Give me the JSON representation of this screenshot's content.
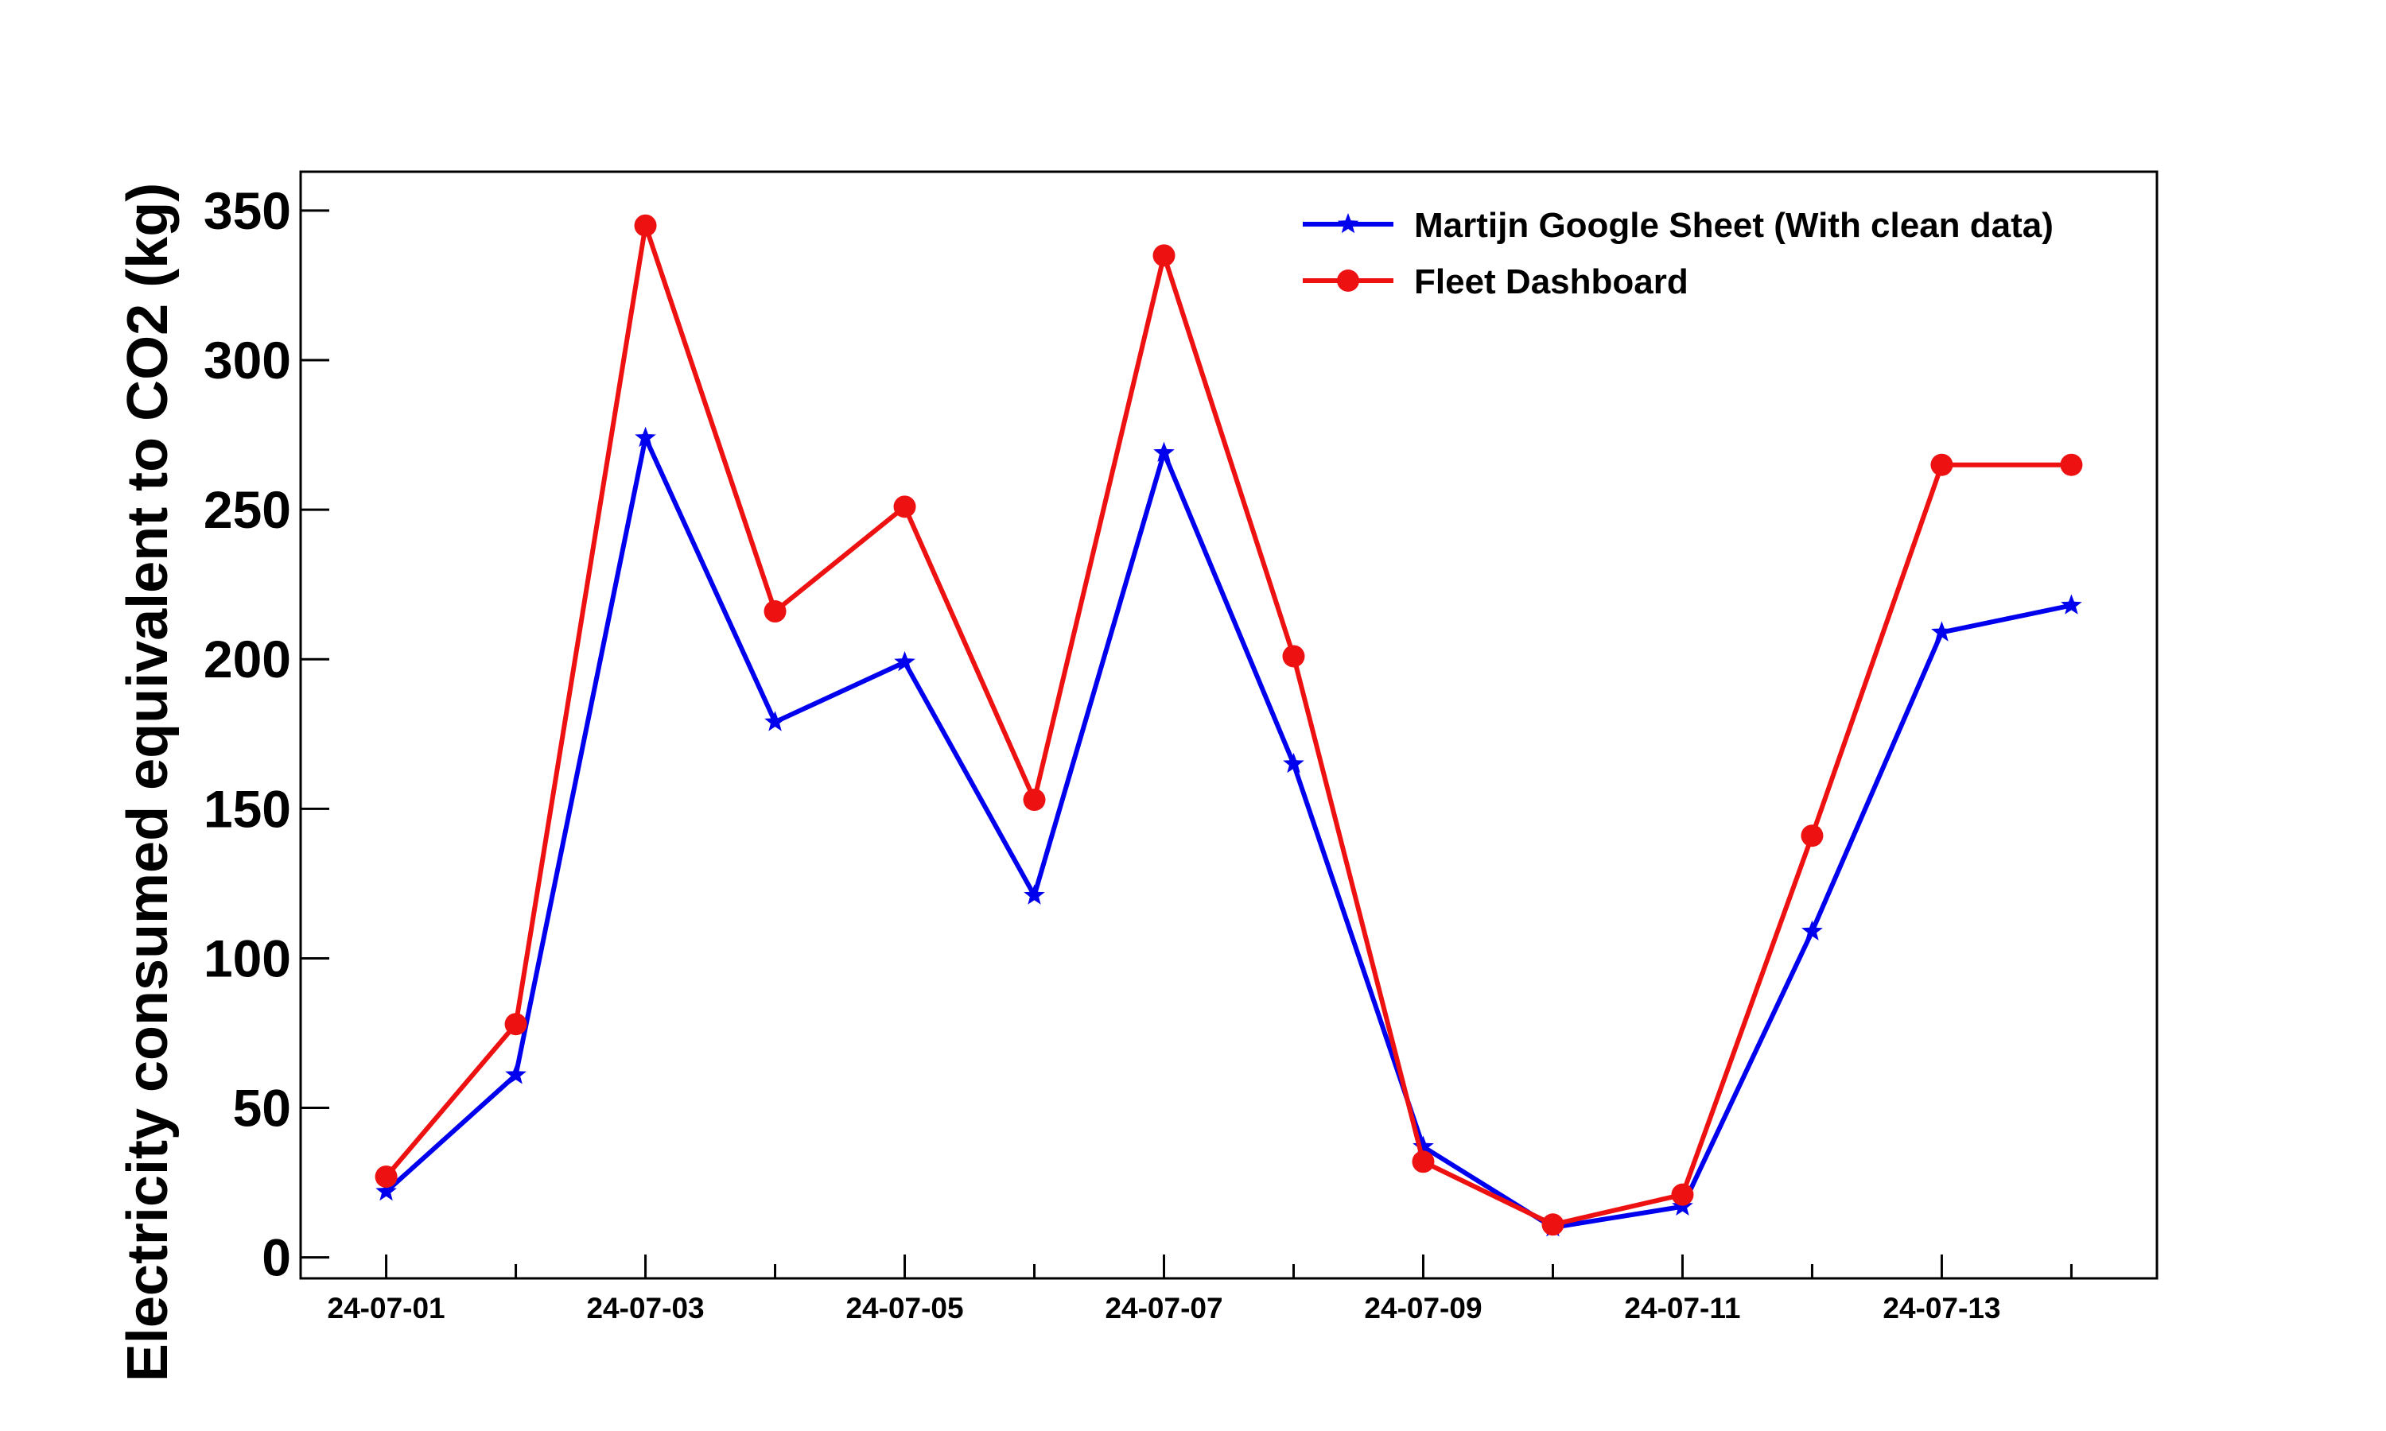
{
  "chart_data": {
    "type": "line",
    "title": "",
    "xlabel": "",
    "ylabel": "Electricity consumed equivalent to CO2 (kg)",
    "x": [
      "24-07-01",
      "24-07-02",
      "24-07-03",
      "24-07-04",
      "24-07-05",
      "24-07-06",
      "24-07-07",
      "24-07-08",
      "24-07-09",
      "24-07-10",
      "24-07-11",
      "24-07-12",
      "24-07-13",
      "24-07-14"
    ],
    "xticks": [
      "24-07-01",
      "24-07-03",
      "24-07-05",
      "24-07-07",
      "24-07-09",
      "24-07-11",
      "24-07-13"
    ],
    "yticks": [
      0,
      50,
      100,
      150,
      200,
      250,
      300,
      350
    ],
    "ylim": [
      -7,
      363
    ],
    "xlim": [
      "24-06-30 (approx, -0.66 day)",
      "24-07-14 (+0.66 day)"
    ],
    "grid": false,
    "legend_position": "top-right",
    "series": [
      {
        "name": "Martijn Google Sheet (With clean data)",
        "color": "#0000ee",
        "marker": "star",
        "values": [
          22,
          61,
          274,
          179,
          199,
          121,
          269,
          165,
          37,
          10,
          17,
          109,
          209,
          218
        ]
      },
      {
        "name": "Fleet Dashboard",
        "color": "#ee1111",
        "marker": "circle",
        "values": [
          27,
          78,
          345,
          216,
          251,
          153,
          335,
          201,
          32,
          11,
          21,
          141,
          265,
          265
        ]
      }
    ]
  }
}
